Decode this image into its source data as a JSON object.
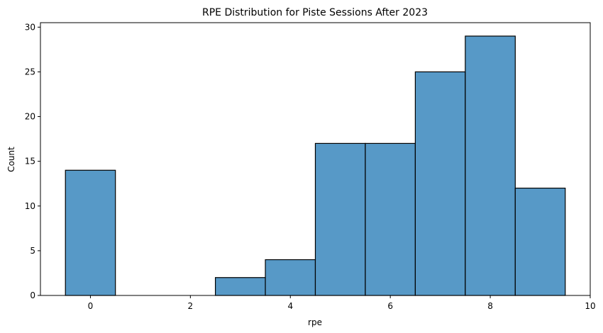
{
  "chart_data": {
    "type": "bar",
    "title": "RPE Distribution for Piste Sessions After 2023",
    "xlabel": "rpe",
    "ylabel": "Count",
    "xlim": [
      -1.0,
      10.0
    ],
    "ylim": [
      0,
      30.5
    ],
    "xticks": [
      0,
      2,
      4,
      6,
      8,
      10
    ],
    "yticks": [
      0,
      5,
      10,
      15,
      20,
      25,
      30
    ],
    "grid": false,
    "bar_color": "#5799c7",
    "edge_color": "#000000",
    "bins": [
      {
        "x0": -0.5,
        "x1": 0.5,
        "count": 14
      },
      {
        "x0": 0.5,
        "x1": 1.5,
        "count": 0
      },
      {
        "x0": 1.5,
        "x1": 2.5,
        "count": 0
      },
      {
        "x0": 2.5,
        "x1": 3.5,
        "count": 2
      },
      {
        "x0": 3.5,
        "x1": 4.5,
        "count": 4
      },
      {
        "x0": 4.5,
        "x1": 5.5,
        "count": 17
      },
      {
        "x0": 5.5,
        "x1": 6.5,
        "count": 17
      },
      {
        "x0": 6.5,
        "x1": 7.5,
        "count": 25
      },
      {
        "x0": 7.5,
        "x1": 8.5,
        "count": 29
      },
      {
        "x0": 8.5,
        "x1": 9.5,
        "count": 12
      }
    ]
  }
}
